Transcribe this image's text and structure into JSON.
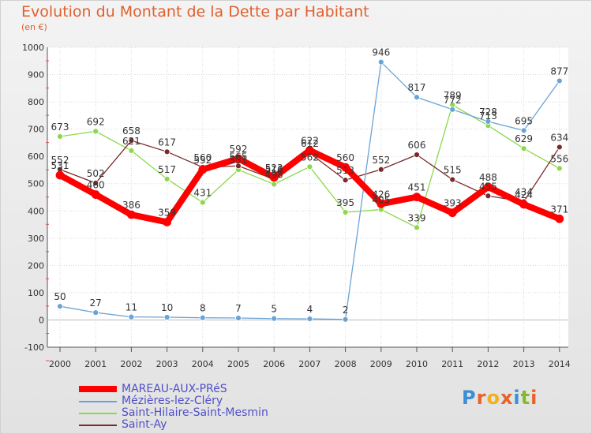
{
  "header": {
    "title": "Evolution du Montant de la Dette par Habitant",
    "subtitle": "(en €)"
  },
  "logo": {
    "letters": [
      "P",
      "r",
      "o",
      "x",
      "i",
      "t",
      "i"
    ],
    "colors": [
      "#3a8fd6",
      "#e8622a",
      "#f2b01e",
      "#e8622a",
      "#3a8fd6",
      "#84b82a",
      "#e8622a"
    ]
  },
  "chart_data": {
    "type": "line",
    "title": "Evolution du Montant de la Dette par Habitant",
    "ylabel": "(en €)",
    "xlabel": "",
    "ylim": [
      -100,
      1000
    ],
    "yticks": [
      -100,
      0,
      100,
      200,
      300,
      400,
      500,
      600,
      700,
      800,
      900,
      1000
    ],
    "grid": true,
    "legend_position": "bottom-left",
    "x": [
      "2000",
      "2001",
      "2002",
      "2003",
      "2004",
      "2005",
      "2006",
      "2007",
      "2008",
      "2009",
      "2010",
      "2011",
      "2012",
      "2013",
      "2014"
    ],
    "series": [
      {
        "name": "MAREAU-AUX-PRéS",
        "color": "#ff0000",
        "values": [
          531,
          460,
          386,
          359,
          552,
          592,
          523,
          622,
          560,
          426,
          451,
          393,
          488,
          424,
          371
        ]
      },
      {
        "name": "Mézières-lez-Cléry",
        "color": "#6aa4d6",
        "values": [
          50,
          27,
          11,
          10,
          8,
          7,
          5,
          4,
          2,
          946,
          817,
          772,
          728,
          695,
          877
        ]
      },
      {
        "name": "Saint-Hilaire-Saint-Mesmin",
        "color": "#8cd84c",
        "values": [
          673,
          692,
          621,
          517,
          431,
          551,
          498,
          562,
          395,
          405,
          339,
          789,
          713,
          629,
          556
        ]
      },
      {
        "name": "Saint-Ay",
        "color": "#7a2a2a",
        "values": [
          552,
          502,
          658,
          617,
          560,
          565,
          516,
          612,
          513,
          552,
          606,
          515,
          455,
          434,
          634
        ]
      }
    ]
  }
}
